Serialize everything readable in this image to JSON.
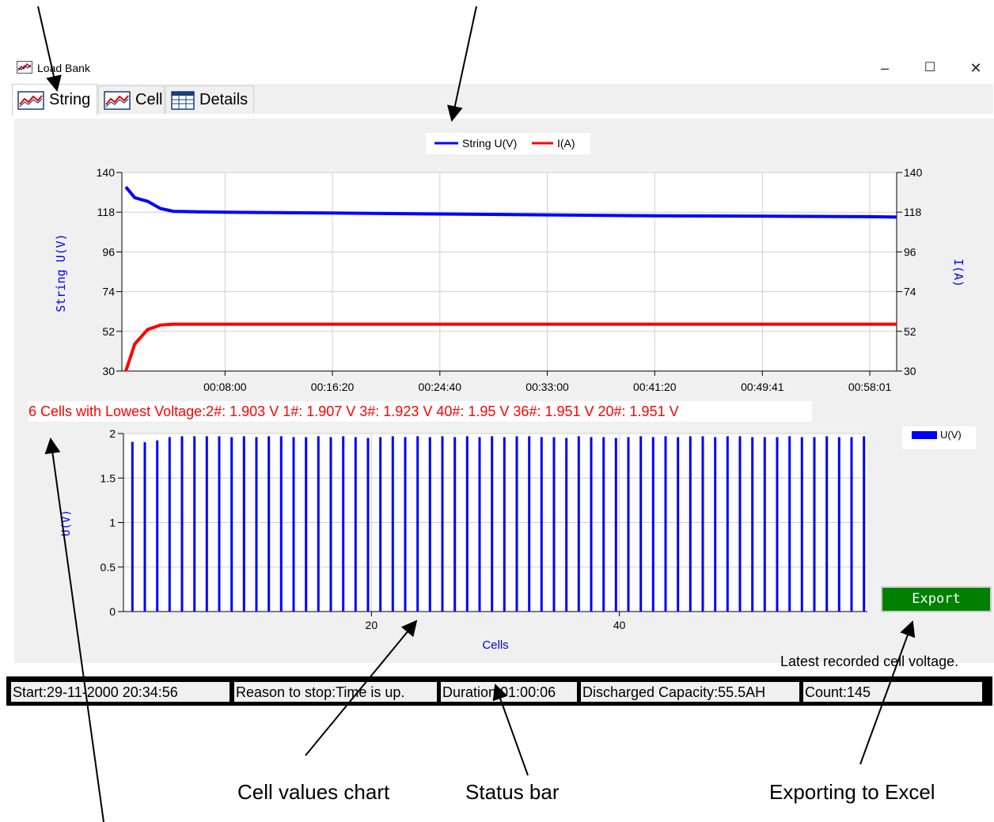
{
  "window": {
    "title": "Load Bank",
    "minimize": "–",
    "maximize": "☐",
    "close": "✕"
  },
  "tabs": [
    {
      "label": "String",
      "icon": "line-chart-icon",
      "active": true
    },
    {
      "label": "Cell",
      "icon": "line-chart-icon",
      "active": false
    },
    {
      "label": "Details",
      "icon": "table-icon",
      "active": false
    }
  ],
  "string_chart": {
    "legend": [
      "String U(V)",
      "I(A)"
    ],
    "ylabel_left": "String U(V)",
    "ylabel_right": "I(A)",
    "y_ticks": [
      "140",
      "118",
      "96",
      "74",
      "52",
      "30"
    ],
    "x_ticks": [
      "00:08:00",
      "00:16:20",
      "00:24:40",
      "00:33:00",
      "00:41:20",
      "00:49:41",
      "00:58:01"
    ]
  },
  "lowest_cells": "6 Cells with Lowest Voltage:2#: 1.903 V   1#: 1.907 V   3#: 1.923 V   40#: 1.95 V   36#: 1.951 V   20#: 1.951 V",
  "cell_chart": {
    "legend": "U(V)",
    "ylabel": "U(V)",
    "xlabel": "Cells",
    "y_ticks": [
      "2",
      "1.5",
      "1",
      "0.5",
      "0"
    ],
    "x_ticks": [
      "20",
      "40"
    ]
  },
  "export_label": "Export",
  "latest_note": "Latest recorded cell voltage.",
  "status": {
    "start": "Start:29-11-2000 20:34:56",
    "reason": "Reason to stop:Time is up.",
    "duration": "Duration:01:00:06",
    "capacity": "Discharged Capacity:55.5AH",
    "count": "Count:145"
  },
  "callouts": {
    "cell_chart": "Cell values chart",
    "status_bar": "Status bar",
    "export": "Exporting to Excel"
  },
  "colors": {
    "voltage": "#0000ff",
    "current": "#ff0000",
    "export": "#008000"
  },
  "chart_data": [
    {
      "type": "line",
      "x_unit": "elapsed time (hh:mm:ss)",
      "x": [
        "00:00:00",
        "00:01:00",
        "00:02:00",
        "00:03:00",
        "00:04:00",
        "00:06:00",
        "00:08:00",
        "00:16:20",
        "00:24:40",
        "00:33:00",
        "00:41:20",
        "00:49:41",
        "00:58:01",
        "01:00:06"
      ],
      "series": [
        {
          "name": "String U(V)",
          "axis": "left",
          "color": "#0000ff",
          "values": [
            132,
            126,
            124,
            120,
            118.5,
            118.2,
            118,
            117.5,
            117,
            116.5,
            116,
            115.8,
            115.5,
            115.3
          ]
        },
        {
          "name": "I(A)",
          "axis": "right",
          "color": "#ff0000",
          "values": [
            30,
            45,
            53,
            55.5,
            56,
            56,
            56,
            56,
            56,
            56,
            56,
            56,
            56,
            56
          ]
        }
      ],
      "ylim": [
        30,
        140
      ],
      "ylim_right": [
        30,
        140
      ],
      "xlim": [
        "00:00:00",
        "01:00:06"
      ],
      "grid": true,
      "legend": "top-center"
    },
    {
      "type": "bar",
      "x": [
        1,
        2,
        3,
        4,
        5,
        6,
        7,
        8,
        9,
        10,
        11,
        12,
        13,
        14,
        15,
        16,
        17,
        18,
        19,
        20,
        21,
        22,
        23,
        24,
        25,
        26,
        27,
        28,
        29,
        30,
        31,
        32,
        33,
        34,
        35,
        36,
        37,
        38,
        39,
        40,
        41,
        42,
        43,
        44,
        45,
        46,
        47,
        48,
        49,
        50,
        51,
        52,
        53,
        54,
        55,
        56,
        57,
        58,
        59,
        60
      ],
      "series": [
        {
          "name": "U(V)",
          "color": "#0000ff",
          "values": [
            1.907,
            1.903,
            1.923,
            1.96,
            1.97,
            1.97,
            1.97,
            1.97,
            1.96,
            1.97,
            1.96,
            1.97,
            1.97,
            1.96,
            1.96,
            1.97,
            1.96,
            1.97,
            1.96,
            1.951,
            1.96,
            1.97,
            1.96,
            1.97,
            1.96,
            1.97,
            1.96,
            1.97,
            1.96,
            1.97,
            1.96,
            1.97,
            1.97,
            1.96,
            1.96,
            1.951,
            1.97,
            1.96,
            1.96,
            1.95,
            1.96,
            1.97,
            1.96,
            1.97,
            1.96,
            1.97,
            1.97,
            1.96,
            1.97,
            1.97,
            1.96,
            1.96,
            1.96,
            1.97,
            1.96,
            1.96,
            1.97,
            1.96,
            1.96,
            1.97
          ]
        }
      ],
      "ylim": [
        0,
        2
      ],
      "xlim": [
        0,
        60
      ],
      "grid": true,
      "legend": "top-right"
    }
  ]
}
